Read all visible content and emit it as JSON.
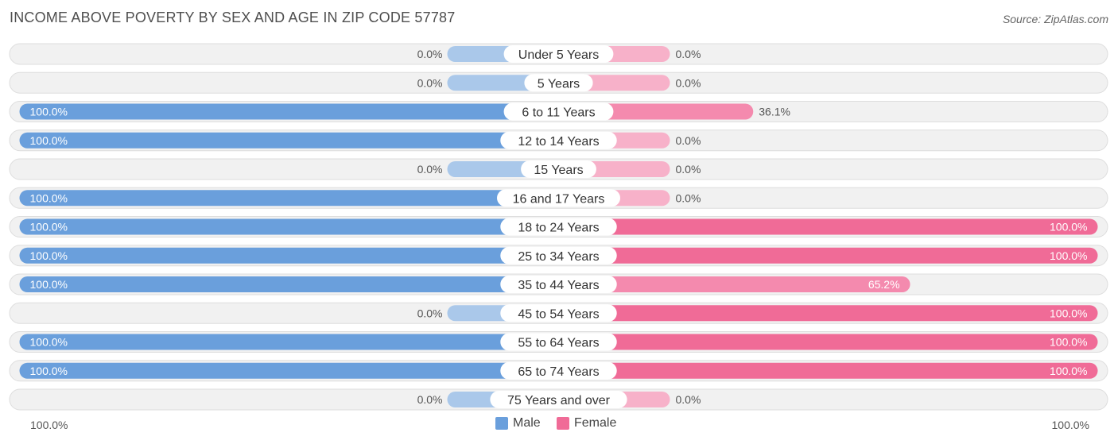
{
  "title": "INCOME ABOVE POVERTY BY SEX AND AGE IN ZIP CODE 57787",
  "source": "Source: ZipAtlas.com",
  "colors": {
    "male_strong": "#6a9fdc",
    "male_light": "#aac8ea",
    "female_strong": "#f06b97",
    "female_mid": "#f48aae",
    "female_light": "#f7b1c9",
    "row_bg": "#f1f1f1",
    "row_border": "#dddddd"
  },
  "legend": {
    "male_label": "Male",
    "female_label": "Female"
  },
  "axis": {
    "left_label": "100.0%",
    "right_label": "100.0%"
  },
  "chart_data": {
    "type": "bar",
    "title": "INCOME ABOVE POVERTY BY SEX AND AGE IN ZIP CODE 57787",
    "categories": [
      "Under 5 Years",
      "5 Years",
      "6 to 11 Years",
      "12 to 14 Years",
      "15 Years",
      "16 and 17 Years",
      "18 to 24 Years",
      "25 to 34 Years",
      "35 to 44 Years",
      "45 to 54 Years",
      "55 to 64 Years",
      "65 to 74 Years",
      "75 Years and over"
    ],
    "series": [
      {
        "name": "Male",
        "values": [
          0.0,
          0.0,
          100.0,
          100.0,
          0.0,
          100.0,
          100.0,
          100.0,
          100.0,
          0.0,
          100.0,
          100.0,
          0.0
        ],
        "labels": [
          "0.0%",
          "0.0%",
          "100.0%",
          "100.0%",
          "0.0%",
          "100.0%",
          "100.0%",
          "100.0%",
          "100.0%",
          "0.0%",
          "100.0%",
          "100.0%",
          "0.0%"
        ]
      },
      {
        "name": "Female",
        "values": [
          0.0,
          0.0,
          36.1,
          0.0,
          0.0,
          0.0,
          100.0,
          100.0,
          65.2,
          100.0,
          100.0,
          100.0,
          0.0
        ],
        "labels": [
          "0.0%",
          "0.0%",
          "36.1%",
          "0.0%",
          "0.0%",
          "0.0%",
          "100.0%",
          "100.0%",
          "65.2%",
          "100.0%",
          "100.0%",
          "100.0%",
          "0.0%"
        ]
      }
    ],
    "xlim": [
      -100,
      100
    ],
    "legend": "bottom-center",
    "grid": false
  }
}
